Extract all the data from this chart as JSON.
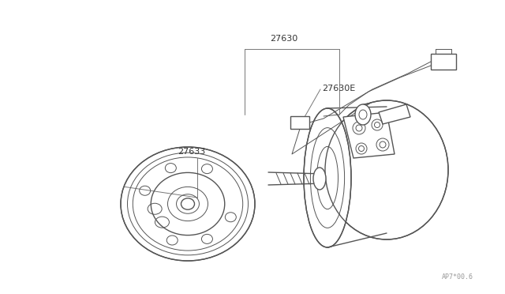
{
  "bg_color": "#ffffff",
  "line_color": "#555555",
  "label_color": "#333333",
  "fig_width": 6.4,
  "fig_height": 3.72,
  "dpi": 100,
  "watermark": "AP7*00.6",
  "watermark_color": "#999999"
}
